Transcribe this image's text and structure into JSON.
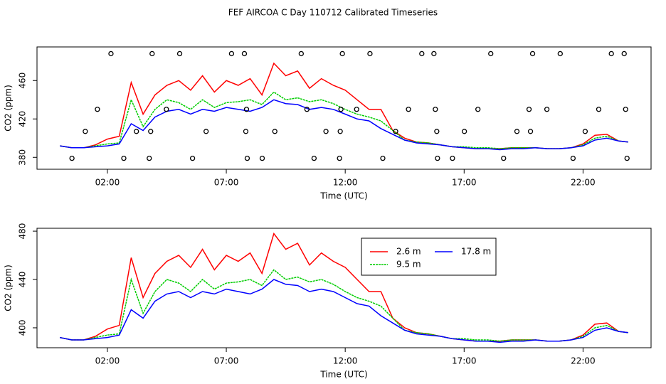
{
  "chart_data": [
    {
      "type": "line",
      "title": "FEF AIRCOA C  Day 110712  Calibrated Timeseries",
      "x_label": "Time (UTC)",
      "y_label": "CO2 (ppm)",
      "xlim": [
        -0.96,
        24.86
      ],
      "xticks": [
        {
          "value": 2,
          "label": "02:00"
        },
        {
          "value": 7,
          "label": "07:00"
        },
        {
          "value": 12,
          "label": "12:00"
        },
        {
          "value": 17,
          "label": "17:00"
        },
        {
          "value": 22,
          "label": "22:00"
        }
      ],
      "ylim": [
        367.6,
        495
      ],
      "yticks": [
        380,
        420,
        460
      ],
      "x": [
        0,
        0.5,
        1,
        1.5,
        2,
        2.5,
        3,
        3.5,
        4,
        4.5,
        5,
        5.5,
        6,
        6.5,
        7,
        7.5,
        8,
        8.5,
        9,
        9.5,
        10,
        10.5,
        11,
        11.5,
        12,
        12.5,
        13,
        13.5,
        14,
        14.5,
        15,
        15.5,
        16,
        16.5,
        17,
        17.5,
        18,
        18.5,
        19,
        19.5,
        20,
        20.5,
        21,
        21.5,
        22,
        22.5,
        23,
        23.5,
        23.9
      ],
      "series": [
        {
          "color": "#ff0000",
          "values": [
            392,
            390,
            390,
            393,
            399,
            402,
            458,
            425,
            445,
            455,
            460,
            450,
            465,
            448,
            460,
            455,
            462,
            445,
            478,
            465,
            470,
            452,
            462,
            455,
            450,
            440,
            430,
            430,
            408,
            400,
            396,
            395,
            393,
            391,
            390,
            389,
            389,
            389,
            390,
            390,
            390,
            389,
            389,
            390,
            394,
            403,
            404,
            397,
            396
          ]
        },
        {
          "color": "#00cd00",
          "values": [
            392,
            390,
            390,
            392,
            394,
            395,
            440,
            412,
            430,
            440,
            437,
            430,
            440,
            432,
            437,
            438,
            440,
            435,
            448,
            440,
            442,
            438,
            440,
            436,
            430,
            425,
            422,
            418,
            408,
            398,
            396,
            395,
            393,
            391,
            391,
            390,
            390,
            389,
            390,
            390,
            390,
            389,
            389,
            390,
            393,
            400,
            402,
            397,
            396
          ]
        },
        {
          "color": "#0000ff",
          "values": [
            392,
            390,
            390,
            391,
            392,
            394,
            415,
            408,
            422,
            428,
            430,
            425,
            430,
            428,
            432,
            430,
            428,
            432,
            440,
            436,
            435,
            430,
            432,
            430,
            425,
            420,
            418,
            410,
            404,
            398,
            395,
            394,
            393,
            391,
            390,
            389,
            389,
            388,
            389,
            389,
            390,
            389,
            389,
            390,
            392,
            398,
            400,
            397,
            396
          ]
        }
      ],
      "points": {
        "color": "#000000",
        "x": [
          0.51,
          1.07,
          1.58,
          2.15,
          2.69,
          3.22,
          3.76,
          3.82,
          3.88,
          4.48,
          5.04,
          5.58,
          6.15,
          7.22,
          7.76,
          7.82,
          7.85,
          7.88,
          8.51,
          9.04,
          10.15,
          10.39,
          10.69,
          11.19,
          11.76,
          11.79,
          11.82,
          11.88,
          12.48,
          13.04,
          13.58,
          14.12,
          14.66,
          15.22,
          15.73,
          15.79,
          15.85,
          15.88,
          16.51,
          17.01,
          17.58,
          18.12,
          18.66,
          19.22,
          19.73,
          19.79,
          19.88,
          20.48,
          21.04,
          21.58,
          22.09,
          22.66,
          23.19,
          23.73,
          23.79,
          23.85
        ],
        "values": [
          379,
          407,
          430,
          488,
          379,
          407,
          379,
          407,
          488,
          430,
          488,
          379,
          407,
          488,
          488,
          407,
          430,
          379,
          379,
          407,
          488,
          430,
          379,
          407,
          379,
          407,
          430,
          488,
          430,
          488,
          379,
          407,
          430,
          488,
          488,
          430,
          407,
          379,
          379,
          407,
          430,
          488,
          379,
          407,
          430,
          407,
          488,
          430,
          488,
          379,
          407,
          430,
          488,
          488,
          430,
          379
        ]
      }
    },
    {
      "type": "line",
      "x_label": "Time (UTC)",
      "y_label": "CO2 (ppm)",
      "xlim": [
        -0.96,
        24.86
      ],
      "xticks": [
        {
          "value": 2,
          "label": "02:00"
        },
        {
          "value": 7,
          "label": "07:00"
        },
        {
          "value": 12,
          "label": "12:00"
        },
        {
          "value": 17,
          "label": "17:00"
        },
        {
          "value": 22,
          "label": "22:00"
        }
      ],
      "ylim": [
        383.5,
        482.4
      ],
      "yticks": [
        400,
        440,
        480
      ],
      "x": [
        0,
        0.5,
        1,
        1.5,
        2,
        2.5,
        3,
        3.5,
        4,
        4.5,
        5,
        5.5,
        6,
        6.5,
        7,
        7.5,
        8,
        8.5,
        9,
        9.5,
        10,
        10.5,
        11,
        11.5,
        12,
        12.5,
        13,
        13.5,
        14,
        14.5,
        15,
        15.5,
        16,
        16.5,
        17,
        17.5,
        18,
        18.5,
        19,
        19.5,
        20,
        20.5,
        21,
        21.5,
        22,
        22.5,
        23,
        23.5,
        23.9
      ],
      "series": [
        {
          "name": "2.6 m",
          "color": "#ff0000",
          "values": [
            392,
            390,
            390,
            393,
            399,
            402,
            458,
            425,
            445,
            455,
            460,
            450,
            465,
            448,
            460,
            455,
            462,
            445,
            478,
            465,
            470,
            452,
            462,
            455,
            450,
            440,
            430,
            430,
            408,
            400,
            396,
            395,
            393,
            391,
            390,
            389,
            389,
            389,
            390,
            390,
            390,
            389,
            389,
            390,
            394,
            403,
            404,
            397,
            396
          ]
        },
        {
          "name": "9.5 m",
          "color": "#00cd00",
          "values": [
            392,
            390,
            390,
            392,
            394,
            395,
            440,
            412,
            430,
            440,
            437,
            430,
            440,
            432,
            437,
            438,
            440,
            435,
            448,
            440,
            442,
            438,
            440,
            436,
            430,
            425,
            422,
            418,
            408,
            398,
            396,
            395,
            393,
            391,
            391,
            390,
            390,
            389,
            390,
            390,
            390,
            389,
            389,
            390,
            393,
            400,
            402,
            397,
            396
          ]
        },
        {
          "name": "17.8 m",
          "color": "#0000ff",
          "values": [
            392,
            390,
            390,
            391,
            392,
            394,
            415,
            408,
            422,
            428,
            430,
            425,
            430,
            428,
            432,
            430,
            428,
            432,
            440,
            436,
            435,
            430,
            432,
            430,
            425,
            420,
            418,
            410,
            404,
            398,
            395,
            394,
            393,
            391,
            390,
            389,
            389,
            388,
            389,
            389,
            390,
            389,
            389,
            390,
            392,
            398,
            400,
            397,
            396
          ]
        }
      ]
    }
  ]
}
